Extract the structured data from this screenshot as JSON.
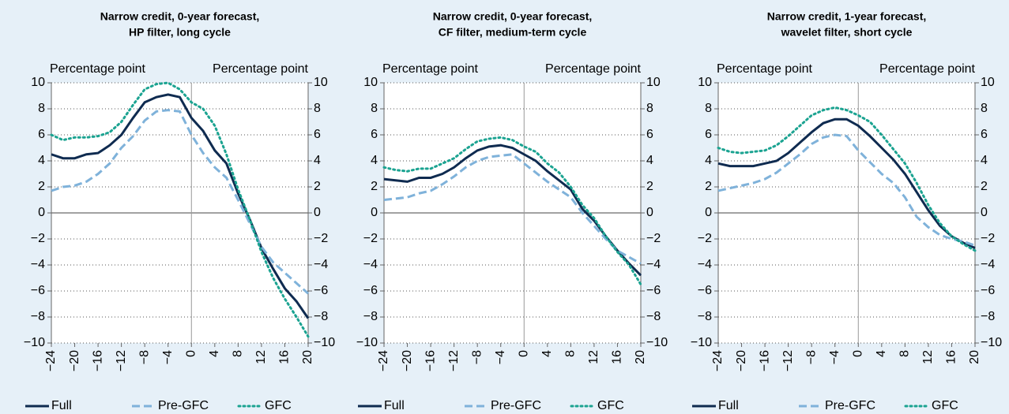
{
  "chart_data": [
    {
      "type": "line",
      "title": [
        "Narrow credit, 0-year forecast,",
        "HP filter, long cycle"
      ],
      "y_label": "Percentage point",
      "y2_label": "Percentage point",
      "x": [
        -24,
        -22,
        -20,
        -18,
        -16,
        -14,
        -12,
        -10,
        -8,
        -6,
        -4,
        -2,
        0,
        2,
        4,
        6,
        8,
        10,
        12,
        14,
        16,
        18,
        20
      ],
      "xlim": [
        -24,
        20
      ],
      "xticks": [
        {
          "value": -24,
          "label": "−24"
        },
        {
          "value": -20,
          "label": "−20"
        },
        {
          "value": -16,
          "label": "−16"
        },
        {
          "value": -12,
          "label": "−12"
        },
        {
          "value": -8,
          "label": "−8"
        },
        {
          "value": -4,
          "label": "−4"
        },
        0,
        4,
        8,
        12,
        16,
        20
      ],
      "ylim": [
        -10,
        10
      ],
      "yticks": [
        {
          "value": -10,
          "label": "−10"
        },
        {
          "value": -8,
          "label": "−8"
        },
        {
          "value": -6,
          "label": "−6"
        },
        {
          "value": -4,
          "label": "−4"
        },
        {
          "value": -2,
          "label": "−2"
        },
        0,
        2,
        4,
        6,
        8,
        10
      ],
      "y2lim": [
        -10,
        10
      ],
      "y2ticks": [
        {
          "value": -10,
          "label": "−10"
        },
        {
          "value": -8,
          "label": "−8"
        },
        {
          "value": -6,
          "label": "−6"
        },
        {
          "value": -4,
          "label": "−4"
        },
        {
          "value": -2,
          "label": "−2"
        },
        0,
        2,
        4,
        6,
        8,
        10
      ],
      "grid": true,
      "series": [
        {
          "name": "Full",
          "color": "#0f2b50",
          "line_style": "solid",
          "values": [
            4.5,
            4.2,
            4.2,
            4.5,
            4.6,
            5.2,
            6.0,
            7.3,
            8.5,
            8.9,
            9.1,
            8.9,
            7.3,
            6.3,
            4.8,
            3.8,
            1.5,
            -0.5,
            -2.7,
            -4.3,
            -5.8,
            -6.8,
            -8.1
          ]
        },
        {
          "name": "Pre-GFC",
          "color": "#7fb2da",
          "line_style": "dashed",
          "values": [
            1.7,
            2.0,
            2.1,
            2.4,
            3.0,
            3.8,
            5.0,
            5.9,
            7.1,
            7.8,
            7.9,
            7.8,
            6.0,
            4.6,
            3.5,
            2.7,
            1.0,
            -0.8,
            -2.6,
            -3.8,
            -4.6,
            -5.4,
            -6.2
          ]
        },
        {
          "name": "GFC",
          "color": "#1ba391",
          "line_style": "dotted",
          "values": [
            6.0,
            5.6,
            5.8,
            5.8,
            5.9,
            6.2,
            7.0,
            8.3,
            9.5,
            9.9,
            10.0,
            9.5,
            8.5,
            8.0,
            6.7,
            4.5,
            1.8,
            -0.5,
            -3.0,
            -5.0,
            -6.6,
            -8.0,
            -9.5
          ]
        }
      ]
    },
    {
      "type": "line",
      "title": [
        "Narrow credit, 0-year forecast,",
        "CF filter, medium-term cycle"
      ],
      "y_label": "Percentage point",
      "y2_label": "Percentage point",
      "x": [
        -24,
        -22,
        -20,
        -18,
        -16,
        -14,
        -12,
        -10,
        -8,
        -6,
        -4,
        -2,
        0,
        2,
        4,
        6,
        8,
        10,
        12,
        14,
        16,
        18,
        20
      ],
      "xlim": [
        -24,
        20
      ],
      "xticks": [
        {
          "value": -24,
          "label": "−24"
        },
        {
          "value": -20,
          "label": "−20"
        },
        {
          "value": -16,
          "label": "−16"
        },
        {
          "value": -12,
          "label": "−12"
        },
        {
          "value": -8,
          "label": "−8"
        },
        {
          "value": -4,
          "label": "−4"
        },
        0,
        4,
        8,
        12,
        16,
        20
      ],
      "ylim": [
        -10,
        10
      ],
      "yticks": [
        {
          "value": -10,
          "label": "−10"
        },
        {
          "value": -8,
          "label": "−8"
        },
        {
          "value": -6,
          "label": "−6"
        },
        {
          "value": -4,
          "label": "−4"
        },
        {
          "value": -2,
          "label": "−2"
        },
        0,
        2,
        4,
        6,
        8,
        10
      ],
      "y2lim": [
        -10,
        10
      ],
      "y2ticks": [
        {
          "value": -10,
          "label": "−10"
        },
        {
          "value": -8,
          "label": "−8"
        },
        {
          "value": -6,
          "label": "−6"
        },
        {
          "value": -4,
          "label": "−4"
        },
        {
          "value": -2,
          "label": "−2"
        },
        0,
        2,
        4,
        6,
        8,
        10
      ],
      "grid": true,
      "series": [
        {
          "name": "Full",
          "color": "#0f2b50",
          "line_style": "solid",
          "values": [
            2.6,
            2.5,
            2.4,
            2.7,
            2.7,
            3.0,
            3.5,
            4.2,
            4.8,
            5.1,
            5.2,
            5.0,
            4.5,
            4.0,
            3.2,
            2.5,
            1.8,
            0.3,
            -0.6,
            -1.8,
            -2.9,
            -3.9,
            -4.8
          ]
        },
        {
          "name": "Pre-GFC",
          "color": "#7fb2da",
          "line_style": "dashed",
          "values": [
            1.0,
            1.1,
            1.2,
            1.5,
            1.7,
            2.2,
            2.8,
            3.5,
            4.0,
            4.3,
            4.4,
            4.5,
            3.8,
            3.1,
            2.4,
            1.8,
            1.2,
            0,
            -1.0,
            -2.0,
            -2.9,
            -3.4,
            -3.9
          ]
        },
        {
          "name": "GFC",
          "color": "#1ba391",
          "line_style": "dotted",
          "values": [
            3.5,
            3.3,
            3.2,
            3.4,
            3.4,
            3.8,
            4.2,
            4.9,
            5.5,
            5.7,
            5.8,
            5.6,
            5.1,
            4.7,
            3.8,
            3.1,
            2.0,
            0.6,
            -0.4,
            -1.8,
            -3.0,
            -4.0,
            -5.5
          ]
        }
      ]
    },
    {
      "type": "line",
      "title": [
        "Narrow credit, 1-year forecast,",
        "wavelet filter, short cycle"
      ],
      "y_label": "Percentage point",
      "y2_label": "Percentage point",
      "x": [
        -24,
        -22,
        -20,
        -18,
        -16,
        -14,
        -12,
        -10,
        -8,
        -6,
        -4,
        -2,
        0,
        2,
        4,
        6,
        8,
        10,
        12,
        14,
        16,
        18,
        20
      ],
      "xlim": [
        -24,
        20
      ],
      "xticks": [
        {
          "value": -24,
          "label": "−24"
        },
        {
          "value": -20,
          "label": "−20"
        },
        {
          "value": -16,
          "label": "−16"
        },
        {
          "value": -12,
          "label": "−12"
        },
        {
          "value": -8,
          "label": "−8"
        },
        {
          "value": -4,
          "label": "−4"
        },
        0,
        4,
        8,
        12,
        16,
        20
      ],
      "ylim": [
        -10,
        10
      ],
      "yticks": [
        {
          "value": -10,
          "label": "−10"
        },
        {
          "value": -8,
          "label": "−8"
        },
        {
          "value": -6,
          "label": "−6"
        },
        {
          "value": -4,
          "label": "−4"
        },
        {
          "value": -2,
          "label": "−2"
        },
        0,
        2,
        4,
        6,
        8,
        10
      ],
      "y2lim": [
        -10,
        10
      ],
      "y2ticks": [
        {
          "value": -10,
          "label": "−10"
        },
        {
          "value": -8,
          "label": "−8"
        },
        {
          "value": -6,
          "label": "−6"
        },
        {
          "value": -4,
          "label": "−4"
        },
        {
          "value": -2,
          "label": "−2"
        },
        0,
        2,
        4,
        6,
        8,
        10
      ],
      "grid": true,
      "series": [
        {
          "name": "Full",
          "color": "#0f2b50",
          "line_style": "solid",
          "values": [
            3.8,
            3.6,
            3.6,
            3.6,
            3.8,
            4.0,
            4.6,
            5.4,
            6.2,
            6.9,
            7.2,
            7.2,
            6.7,
            5.9,
            5.0,
            4.1,
            3.0,
            1.6,
            0.2,
            -1.0,
            -1.8,
            -2.3,
            -2.7
          ]
        },
        {
          "name": "Pre-GFC",
          "color": "#7fb2da",
          "line_style": "dashed",
          "values": [
            1.7,
            1.9,
            2.1,
            2.3,
            2.6,
            3.1,
            3.8,
            4.5,
            5.3,
            5.8,
            6.0,
            5.9,
            4.8,
            3.9,
            3.0,
            2.3,
            1.2,
            -0.3,
            -1.1,
            -1.7,
            -2.0,
            -2.2,
            -2.5
          ]
        },
        {
          "name": "GFC",
          "color": "#1ba391",
          "line_style": "dotted",
          "values": [
            5.0,
            4.7,
            4.6,
            4.7,
            4.8,
            5.2,
            5.9,
            6.7,
            7.5,
            7.9,
            8.1,
            7.9,
            7.5,
            7.0,
            6.0,
            4.9,
            3.8,
            2.3,
            0.6,
            -0.8,
            -1.8,
            -2.4,
            -2.9
          ]
        }
      ]
    }
  ]
}
